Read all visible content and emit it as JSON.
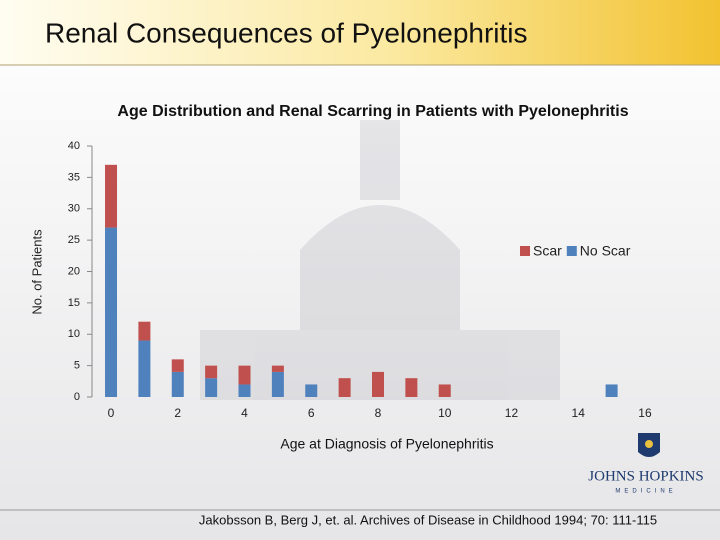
{
  "slide": {
    "title": "Renal Consequences of Pyelonephritis",
    "citation": "Jakobsson B, Berg J, et. al. Archives of Disease in Childhood 1994; 70: 111-115",
    "logo": {
      "name": "JOHNS HOPKINS",
      "sub": "MEDICINE"
    }
  },
  "chart_data": {
    "type": "bar",
    "stacked": true,
    "title": "Age Distribution and Renal Scarring in Patients with Pyelonephritis",
    "xlabel": "Age at Diagnosis of Pyelonephritis",
    "ylabel": "No. of Patients",
    "x": [
      0,
      1,
      2,
      3,
      4,
      5,
      6,
      7,
      8,
      9,
      10,
      15
    ],
    "series": [
      {
        "name": "Scar",
        "color": "#c0504d",
        "values": [
          10,
          3,
          2,
          2,
          3,
          1,
          0,
          3,
          4,
          3,
          2,
          0
        ]
      },
      {
        "name": "No Scar",
        "color": "#4f81bd",
        "values": [
          27,
          9,
          4,
          3,
          2,
          4,
          2,
          0,
          0,
          0,
          0,
          2
        ]
      }
    ],
    "xlim": [
      -0.57,
      16.6
    ],
    "xticks": [
      0,
      2,
      4,
      6,
      8,
      10,
      12,
      14,
      16
    ],
    "ylim": [
      0,
      40
    ],
    "yticks": [
      0,
      5,
      10,
      15,
      20,
      25,
      30,
      35,
      40
    ],
    "grid": false,
    "legend": "right"
  }
}
